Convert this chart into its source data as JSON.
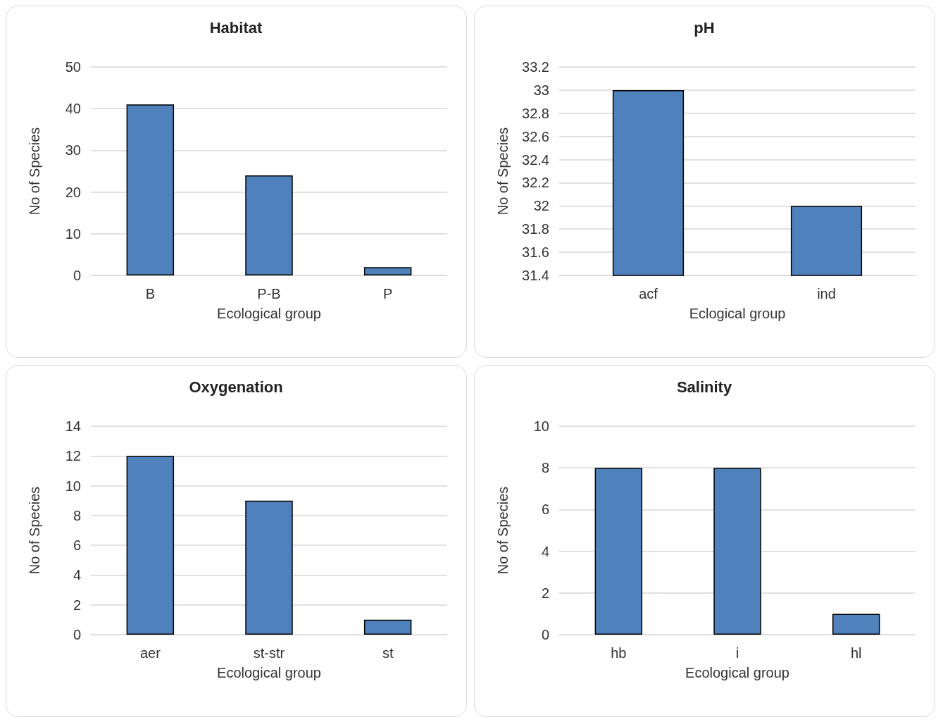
{
  "chart_data": [
    {
      "type": "bar",
      "title": "Habitat",
      "xlabel": "Ecological group",
      "ylabel": "No of Species",
      "categories": [
        "B",
        "P-B",
        "P"
      ],
      "values": [
        41,
        24,
        2
      ],
      "color": "#4f81bd",
      "ylim": [
        0,
        50
      ],
      "yticks": [
        0,
        10,
        20,
        30,
        40,
        50
      ],
      "grid": "y"
    },
    {
      "type": "bar",
      "title": "pH",
      "xlabel": "Eclogical group",
      "ylabel": "No of Species",
      "categories": [
        "acf",
        "ind"
      ],
      "values": [
        33,
        32
      ],
      "color": "#4f81bd",
      "ylim": [
        31.4,
        33.2
      ],
      "yticks": [
        31.4,
        31.6,
        31.8,
        32,
        32.2,
        32.4,
        32.6,
        32.8,
        33,
        33.2
      ],
      "grid": "y"
    },
    {
      "type": "bar",
      "title": "Oxygenation",
      "xlabel": "Ecological group",
      "ylabel": "No of Species",
      "categories": [
        "aer",
        "st-str",
        "st"
      ],
      "values": [
        12,
        9,
        1
      ],
      "color": "#4f81bd",
      "ylim": [
        0,
        14
      ],
      "yticks": [
        0,
        2,
        4,
        6,
        8,
        10,
        12,
        14
      ],
      "grid": "y"
    },
    {
      "type": "bar",
      "title": "Salinity",
      "xlabel": "Ecological group",
      "ylabel": "No of Species",
      "categories": [
        "hb",
        "i",
        "hl"
      ],
      "values": [
        8,
        8,
        1
      ],
      "color": "#4f81bd",
      "ylim": [
        0,
        10
      ],
      "yticks": [
        0,
        2,
        4,
        6,
        8,
        10
      ],
      "grid": "y"
    }
  ]
}
